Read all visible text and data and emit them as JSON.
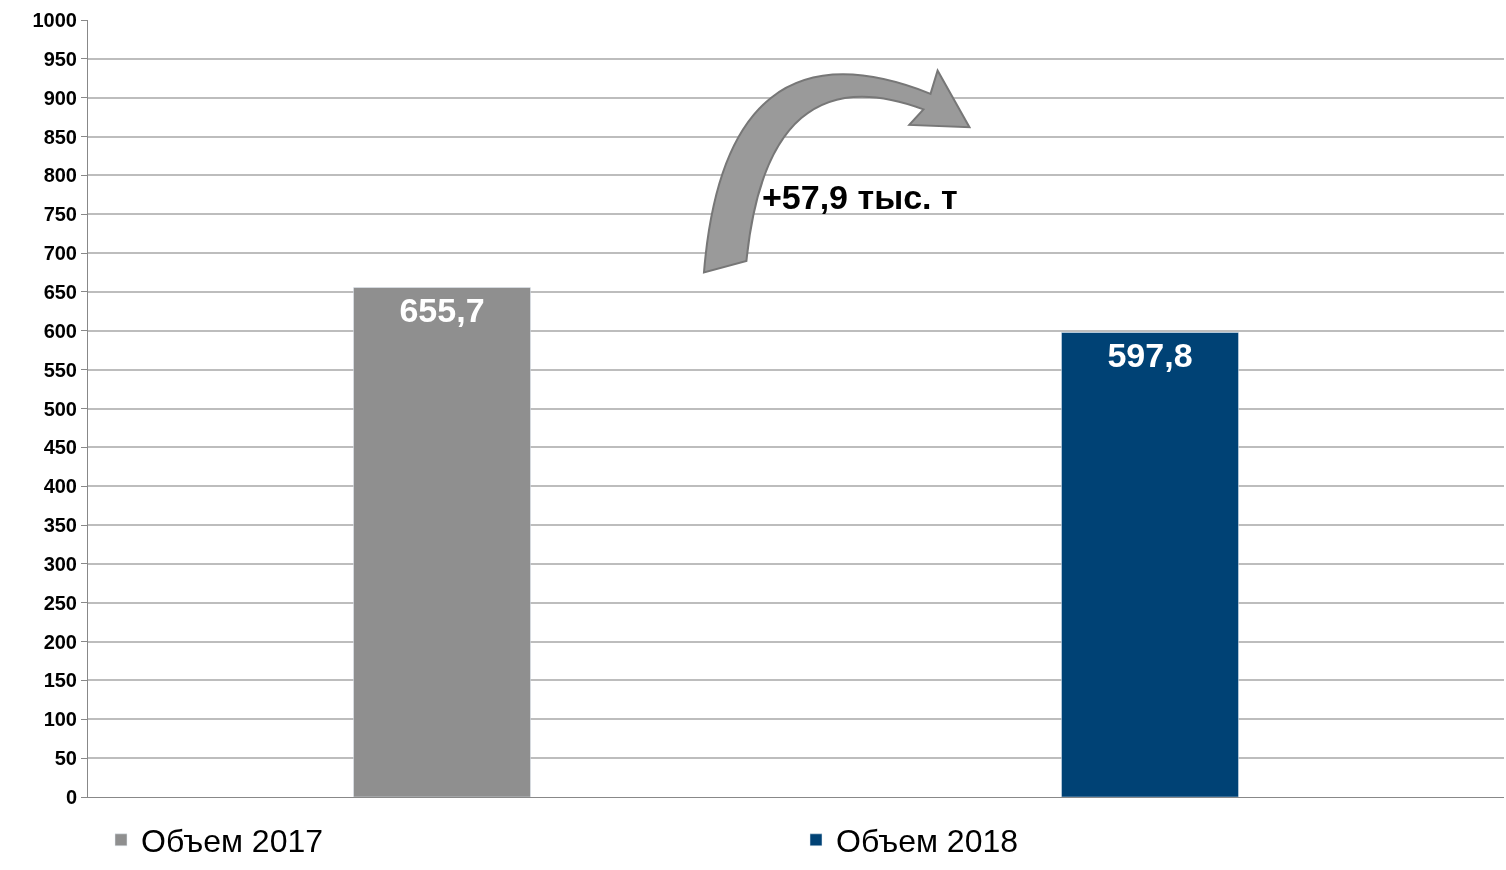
{
  "chart_data": {
    "type": "bar",
    "categories": [
      null,
      null
    ],
    "series": [
      {
        "name": "Объем 2017",
        "color": "#8f8f8f",
        "values": [
          655.7,
          null
        ],
        "value_labels": [
          "655,7",
          null
        ]
      },
      {
        "name": "Объем 2018",
        "color": "#004275",
        "values": [
          null,
          597.8
        ],
        "value_labels": [
          null,
          "597,8"
        ]
      }
    ],
    "ylim": [
      0,
      1000
    ],
    "yticks": [
      0,
      50,
      100,
      150,
      200,
      250,
      300,
      350,
      400,
      450,
      500,
      550,
      600,
      650,
      700,
      750,
      800,
      850,
      900,
      950,
      1000
    ],
    "grid": "y",
    "legend": "bottom",
    "tick_labels": "y",
    "annotations": [
      "+57,9 тыс. т"
    ]
  }
}
